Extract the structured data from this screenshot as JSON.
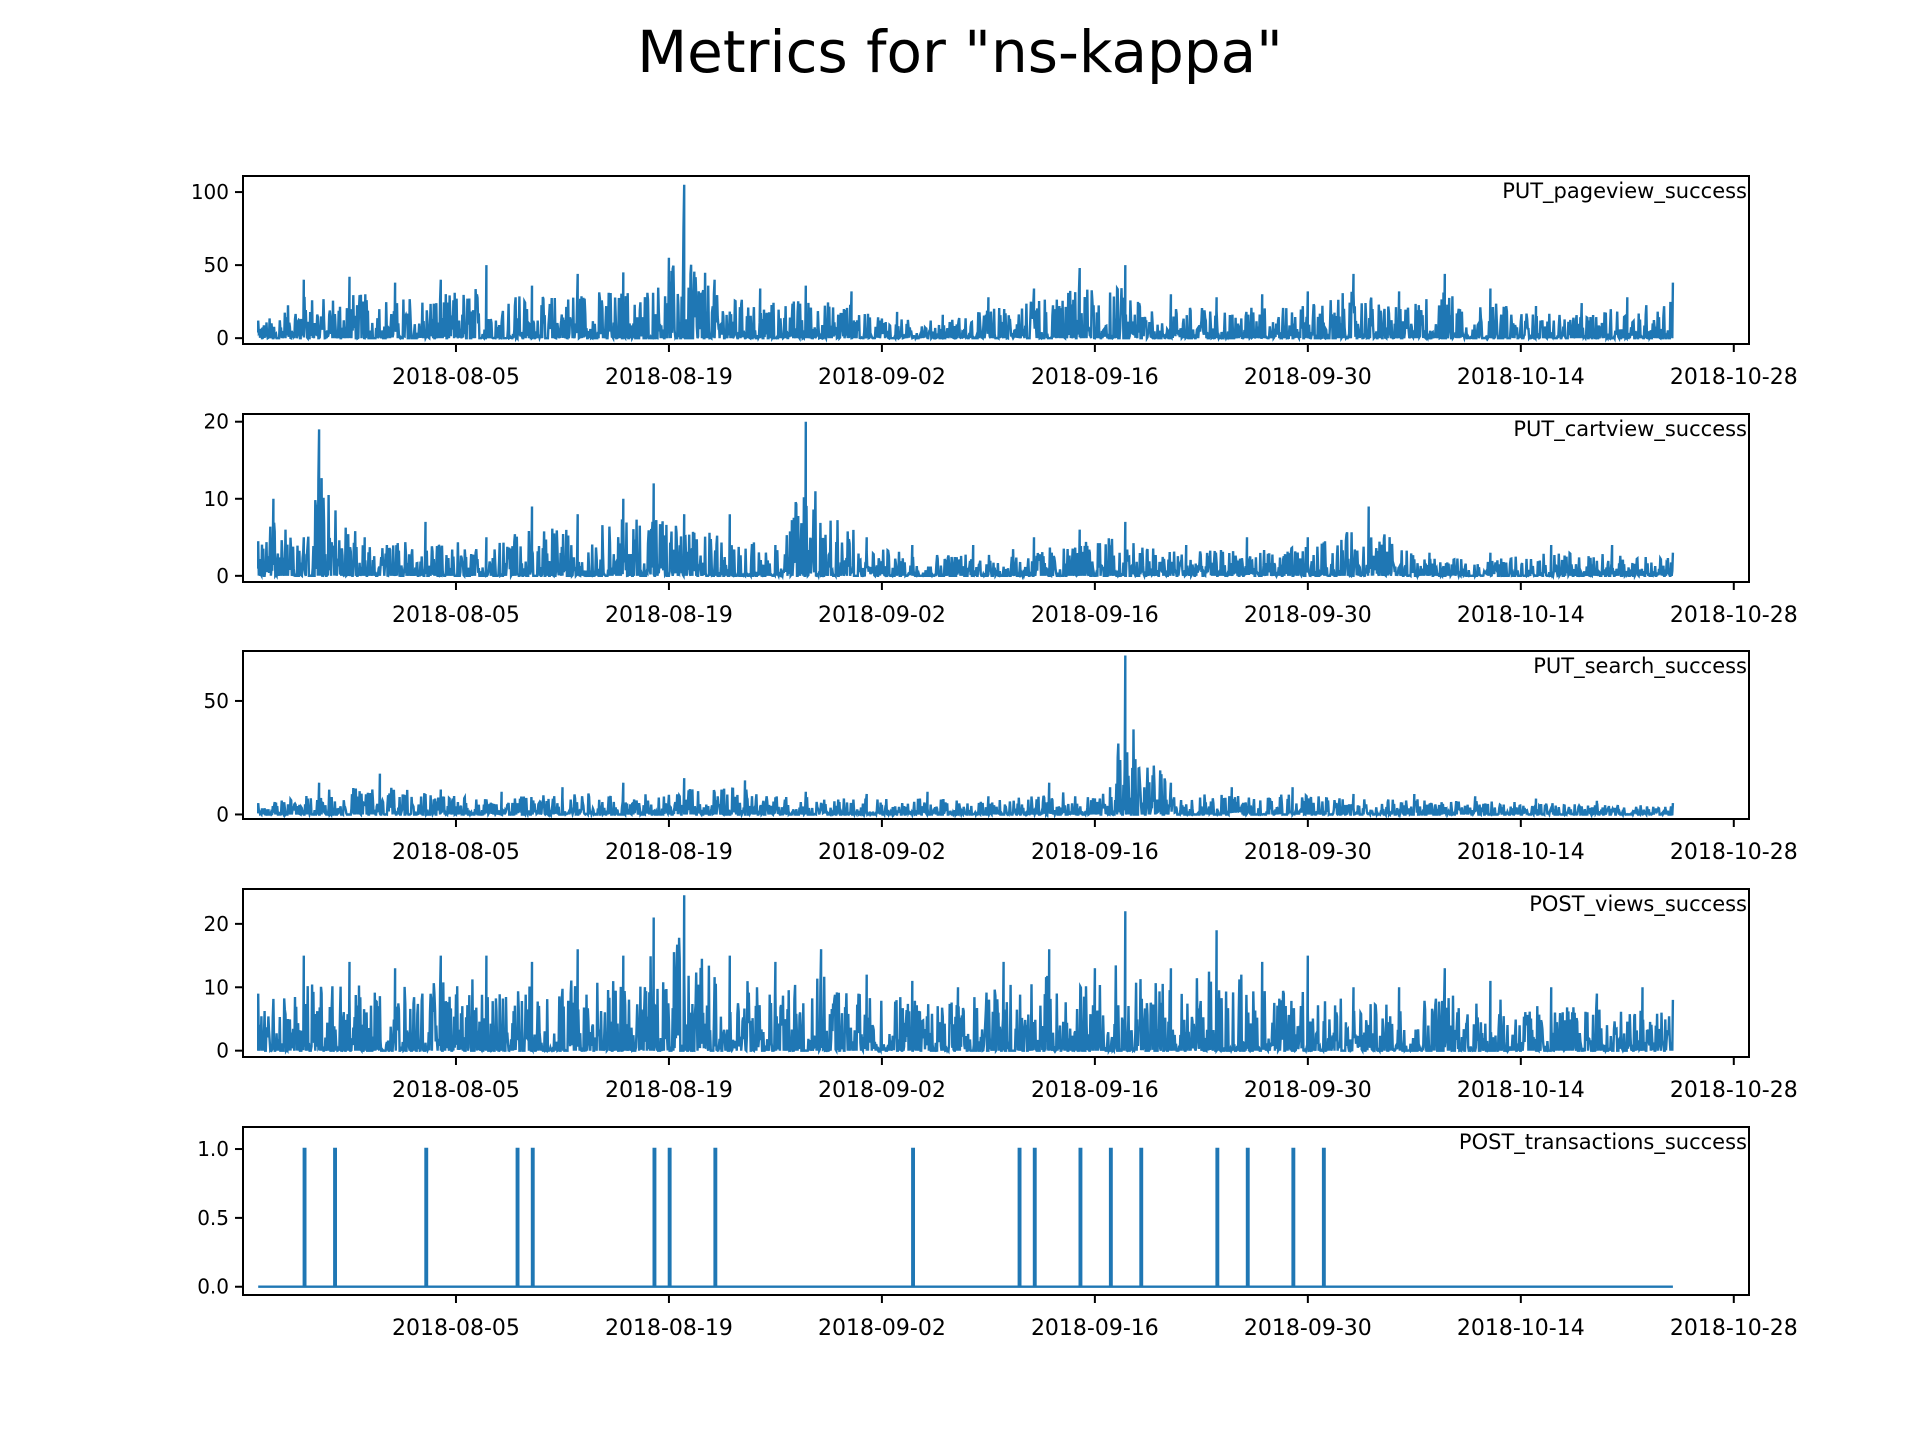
{
  "title": "Metrics for \"ns-kappa\"",
  "colors": {
    "line": "#1f77b4",
    "axis": "#000000",
    "background": "#ffffff"
  },
  "x_ticks": [
    "2018-08-05",
    "2018-08-19",
    "2018-09-02",
    "2018-09-16",
    "2018-09-30",
    "2018-10-14",
    "2018-10-28"
  ],
  "chart_data": [
    {
      "type": "line",
      "series_label": "PUT_pageview_success",
      "x_range": [
        "2018-07-22",
        "2018-10-29"
      ],
      "ylim": [
        -4,
        111
      ],
      "yticks": [
        0,
        50,
        100
      ],
      "ytick_labels": [
        "0",
        "50",
        "100"
      ],
      "grid": false,
      "legend": "top-right",
      "x": [
        "2018-07-23",
        "2018-07-26",
        "2018-07-29",
        "2018-08-01",
        "2018-08-04",
        "2018-08-07",
        "2018-08-10",
        "2018-08-13",
        "2018-08-16",
        "2018-08-19",
        "2018-08-20",
        "2018-08-22",
        "2018-08-25",
        "2018-08-28",
        "2018-08-31",
        "2018-09-03",
        "2018-09-06",
        "2018-09-09",
        "2018-09-12",
        "2018-09-15",
        "2018-09-18",
        "2018-09-21",
        "2018-09-24",
        "2018-09-27",
        "2018-09-30",
        "2018-10-03",
        "2018-10-06",
        "2018-10-09",
        "2018-10-12",
        "2018-10-15",
        "2018-10-18",
        "2018-10-21",
        "2018-10-24"
      ],
      "y": [
        12,
        40,
        42,
        38,
        40,
        50,
        36,
        44,
        45,
        55,
        105,
        40,
        34,
        36,
        32,
        18,
        16,
        28,
        34,
        48,
        50,
        30,
        28,
        30,
        32,
        44,
        32,
        44,
        34,
        22,
        24,
        28,
        38
      ]
    },
    {
      "type": "line",
      "series_label": "PUT_cartview_success",
      "x_range": [
        "2018-07-22",
        "2018-10-29"
      ],
      "ylim": [
        -0.8,
        21
      ],
      "yticks": [
        0,
        10,
        20
      ],
      "ytick_labels": [
        "0",
        "10",
        "20"
      ],
      "grid": false,
      "legend": "top-right",
      "x": [
        "2018-07-23",
        "2018-07-24",
        "2018-07-26",
        "2018-07-27",
        "2018-07-30",
        "2018-08-03",
        "2018-08-07",
        "2018-08-10",
        "2018-08-13",
        "2018-08-16",
        "2018-08-18",
        "2018-08-20",
        "2018-08-23",
        "2018-08-26",
        "2018-08-28",
        "2018-09-01",
        "2018-09-04",
        "2018-09-08",
        "2018-09-12",
        "2018-09-15",
        "2018-09-18",
        "2018-09-22",
        "2018-09-26",
        "2018-09-30",
        "2018-10-04",
        "2018-10-08",
        "2018-10-12",
        "2018-10-16",
        "2018-10-20",
        "2018-10-24"
      ],
      "y": [
        4.5,
        10,
        5,
        19,
        5,
        7,
        5,
        9,
        8,
        10,
        12,
        8,
        8,
        4,
        20,
        5,
        4,
        4,
        5,
        6,
        7,
        4,
        5,
        5,
        9,
        3,
        3,
        4,
        4,
        3
      ]
    },
    {
      "type": "line",
      "series_label": "PUT_search_success",
      "x_range": [
        "2018-07-22",
        "2018-10-29"
      ],
      "ylim": [
        -2,
        72
      ],
      "yticks": [
        0,
        50
      ],
      "ytick_labels": [
        "0",
        "50"
      ],
      "grid": false,
      "legend": "top-right",
      "x": [
        "2018-07-23",
        "2018-07-27",
        "2018-07-31",
        "2018-08-04",
        "2018-08-08",
        "2018-08-12",
        "2018-08-16",
        "2018-08-20",
        "2018-08-24",
        "2018-08-28",
        "2018-09-01",
        "2018-09-05",
        "2018-09-09",
        "2018-09-13",
        "2018-09-17",
        "2018-09-18",
        "2018-09-21",
        "2018-09-25",
        "2018-09-29",
        "2018-10-03",
        "2018-10-07",
        "2018-10-11",
        "2018-10-15",
        "2018-10-19",
        "2018-10-24"
      ],
      "y": [
        5,
        14,
        18,
        11,
        10,
        12,
        14,
        16,
        15,
        10,
        9,
        10,
        8,
        14,
        12,
        70,
        14,
        12,
        12,
        9,
        9,
        8,
        7,
        6,
        5
      ]
    },
    {
      "type": "line",
      "series_label": "POST_views_success",
      "x_range": [
        "2018-07-22",
        "2018-10-29"
      ],
      "ylim": [
        -1,
        25.5
      ],
      "yticks": [
        0,
        10,
        20
      ],
      "ytick_labels": [
        "0",
        "10",
        "20"
      ],
      "grid": false,
      "legend": "top-right",
      "x": [
        "2018-07-23",
        "2018-07-26",
        "2018-07-29",
        "2018-08-01",
        "2018-08-04",
        "2018-08-07",
        "2018-08-10",
        "2018-08-13",
        "2018-08-16",
        "2018-08-18",
        "2018-08-20",
        "2018-08-23",
        "2018-08-26",
        "2018-08-29",
        "2018-09-01",
        "2018-09-04",
        "2018-09-07",
        "2018-09-10",
        "2018-09-13",
        "2018-09-16",
        "2018-09-18",
        "2018-09-21",
        "2018-09-24",
        "2018-09-27",
        "2018-09-30",
        "2018-10-03",
        "2018-10-06",
        "2018-10-09",
        "2018-10-12",
        "2018-10-16",
        "2018-10-19",
        "2018-10-22",
        "2018-10-24"
      ],
      "y": [
        9,
        15,
        14,
        13,
        15,
        15,
        14,
        16,
        15,
        21,
        24.5,
        15,
        14,
        16,
        12,
        11,
        10,
        14,
        16,
        13,
        22,
        13,
        19,
        14,
        15,
        10,
        10,
        13,
        11,
        10,
        9,
        10,
        8
      ]
    },
    {
      "type": "line",
      "series_label": "POST_transactions_success",
      "x_range": [
        "2018-07-22",
        "2018-10-29"
      ],
      "ylim": [
        -0.06,
        1.16
      ],
      "yticks": [
        0,
        0.5,
        1
      ],
      "ytick_labels": [
        "0.0",
        "0.5",
        "1.0"
      ],
      "grid": false,
      "legend": "top-right",
      "baseline": 0,
      "spikes": [
        {
          "x": "2018-07-26",
          "y": 1
        },
        {
          "x": "2018-07-28",
          "y": 1
        },
        {
          "x": "2018-08-03",
          "y": 1
        },
        {
          "x": "2018-08-09",
          "y": 1
        },
        {
          "x": "2018-08-10",
          "y": 1
        },
        {
          "x": "2018-08-18",
          "y": 1
        },
        {
          "x": "2018-08-19",
          "y": 1
        },
        {
          "x": "2018-08-22",
          "y": 1
        },
        {
          "x": "2018-09-04",
          "y": 1
        },
        {
          "x": "2018-09-11",
          "y": 1
        },
        {
          "x": "2018-09-12",
          "y": 1
        },
        {
          "x": "2018-09-15",
          "y": 1
        },
        {
          "x": "2018-09-17",
          "y": 1
        },
        {
          "x": "2018-09-19",
          "y": 1
        },
        {
          "x": "2018-09-24",
          "y": 1
        },
        {
          "x": "2018-09-26",
          "y": 1
        },
        {
          "x": "2018-09-29",
          "y": 1
        },
        {
          "x": "2018-10-01",
          "y": 1
        }
      ],
      "x_end": "2018-10-24"
    }
  ]
}
